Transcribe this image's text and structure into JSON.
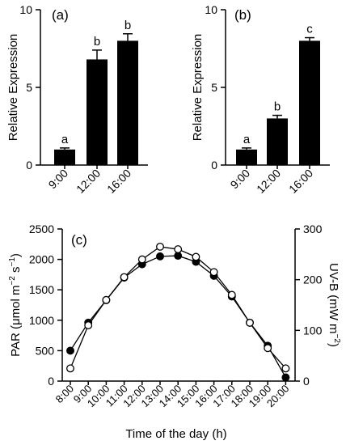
{
  "chart_data": [
    {
      "type": "bar",
      "panel_label": "(a)",
      "ylabel": "Relative Expression",
      "categories": [
        "9:00",
        "12:00",
        "16:00"
      ],
      "values": [
        1.0,
        6.8,
        8.0
      ],
      "errors": [
        0.1,
        0.6,
        0.45
      ],
      "significance": [
        "a",
        "b",
        "b"
      ],
      "ylim": [
        0,
        10
      ],
      "yticks": [
        0,
        5,
        10
      ],
      "bar_color": "#000000"
    },
    {
      "type": "bar",
      "panel_label": "(b)",
      "ylabel": "Relative Expression",
      "categories": [
        "9:00",
        "12:00",
        "16:00"
      ],
      "values": [
        1.0,
        3.0,
        8.0
      ],
      "errors": [
        0.1,
        0.2,
        0.2
      ],
      "significance": [
        "a",
        "b",
        "c"
      ],
      "ylim": [
        0,
        10
      ],
      "yticks": [
        0,
        5,
        10
      ],
      "bar_color": "#000000"
    },
    {
      "type": "line",
      "panel_label": "(c)",
      "xlabel": "Time of the day (h)",
      "ylabel_left_prefix": "PAR (μmol m",
      "ylabel_left_sup1": "−2",
      "ylabel_left_mid": " s",
      "ylabel_left_sup2": "−1",
      "ylabel_left_suffix": ")",
      "ylabel_right_prefix": "UV-B (mW m",
      "ylabel_right_sup": "−2",
      "ylabel_right_suffix": ")",
      "categories": [
        "8:00",
        "9:00",
        "10:00",
        "11:00",
        "12:00",
        "13:00",
        "14:00",
        "15:00",
        "16:00",
        "17:00",
        "18:00",
        "19:00",
        "20:00"
      ],
      "ylim_left": [
        0,
        2500
      ],
      "yticks_left": [
        0,
        500,
        1000,
        1500,
        2000,
        2500
      ],
      "ylim_right": [
        0,
        300
      ],
      "yticks_right": [
        0,
        100,
        200,
        300
      ],
      "series": [
        {
          "axis": "left",
          "marker": "filled-circle",
          "values": [
            500,
            960,
            1330,
            1700,
            1920,
            2050,
            2060,
            1960,
            1730,
            1390,
            960,
            580,
            60
          ]
        },
        {
          "axis": "right",
          "marker": "open-circle",
          "values": [
            25,
            110,
            160,
            205,
            240,
            265,
            260,
            245,
            215,
            170,
            115,
            65,
            25
          ]
        }
      ]
    }
  ]
}
